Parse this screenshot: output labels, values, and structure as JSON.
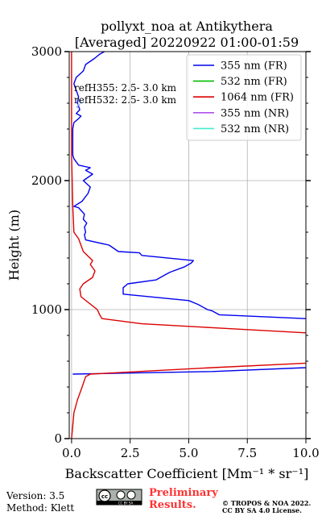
{
  "chart_data": {
    "type": "line",
    "title_line1": "pollyxt_noa at Antikythera",
    "title_line2": "[Averaged] 20220922 01:00-01:59",
    "xlabel": "Backscatter Coefficient [Mm⁻¹ * sr⁻¹]",
    "ylabel": "Height (m)",
    "xlim": [
      -0.1,
      10.0
    ],
    "ylim": [
      0,
      3000
    ],
    "xticks": [
      0.0,
      2.5,
      5.0,
      7.5,
      10.0
    ],
    "xtick_labels": [
      "0.0",
      "2.5",
      "5.0",
      "7.5",
      "10.0"
    ],
    "yticks": [
      0,
      1000,
      2000,
      3000
    ],
    "ytick_labels": [
      "0",
      "1000",
      "2000",
      "3000"
    ],
    "grid": true,
    "legend_position": "top-right",
    "annotations": [
      "refH355:  2.5- 3.0 km",
      "refH532:  2.5- 3.0 km"
    ],
    "series": [
      {
        "name": "355 nm (FR)",
        "color": "#0000ee",
        "points": [
          [
            0.05,
            500
          ],
          [
            6.0,
            520
          ],
          [
            10.0,
            550
          ],
          [
            10.5,
            560
          ],
          [
            12.0,
            900
          ],
          [
            10.0,
            930
          ],
          [
            6.3,
            960
          ],
          [
            6.0,
            990
          ],
          [
            5.8,
            1000
          ],
          [
            5.4,
            1040
          ],
          [
            5.0,
            1070
          ],
          [
            2.2,
            1120
          ],
          [
            2.2,
            1170
          ],
          [
            2.4,
            1200
          ],
          [
            3.6,
            1230
          ],
          [
            4.0,
            1270
          ],
          [
            4.2,
            1290
          ],
          [
            4.8,
            1330
          ],
          [
            5.1,
            1360
          ],
          [
            5.2,
            1380
          ],
          [
            3.0,
            1420
          ],
          [
            2.9,
            1440
          ],
          [
            2.0,
            1450
          ],
          [
            1.6,
            1500
          ],
          [
            0.6,
            1540
          ],
          [
            0.55,
            1580
          ],
          [
            0.6,
            1600
          ],
          [
            0.55,
            1640
          ],
          [
            0.65,
            1670
          ],
          [
            0.5,
            1700
          ],
          [
            0.55,
            1740
          ],
          [
            0.3,
            1790
          ],
          [
            0.1,
            1800
          ],
          [
            0.45,
            1840
          ],
          [
            0.7,
            1900
          ],
          [
            0.8,
            1950
          ],
          [
            0.5,
            2000
          ],
          [
            0.9,
            2050
          ],
          [
            0.6,
            2080
          ],
          [
            0.8,
            2100
          ],
          [
            0.3,
            2120
          ],
          [
            0.1,
            2170
          ],
          [
            0.05,
            2200
          ],
          [
            0.05,
            2400
          ],
          [
            0.1,
            2450
          ],
          [
            0.3,
            2480
          ],
          [
            0.4,
            2500
          ],
          [
            0.2,
            2520
          ],
          [
            0.35,
            2550
          ],
          [
            0.25,
            2600
          ],
          [
            0.3,
            2650
          ],
          [
            0.2,
            2700
          ],
          [
            0.1,
            2750
          ],
          [
            0.2,
            2800
          ],
          [
            0.5,
            2850
          ],
          [
            0.6,
            2900
          ],
          [
            1.0,
            2950
          ],
          [
            1.2,
            2980
          ],
          [
            1.4,
            3000
          ]
        ]
      },
      {
        "name": "532 nm (FR)",
        "color": "#00bb00",
        "points": []
      },
      {
        "name": "1064 nm (FR)",
        "color": "#dd0000",
        "points": [
          [
            0.0,
            0
          ],
          [
            0.05,
            100
          ],
          [
            0.1,
            200
          ],
          [
            0.25,
            300
          ],
          [
            0.45,
            400
          ],
          [
            0.6,
            480
          ],
          [
            0.8,
            500
          ],
          [
            6.0,
            550
          ],
          [
            9.5,
            580
          ],
          [
            10.5,
            590
          ],
          [
            11.5,
            810
          ],
          [
            10.0,
            820
          ],
          [
            6.0,
            860
          ],
          [
            3.0,
            890
          ],
          [
            1.3,
            930
          ],
          [
            1.2,
            960
          ],
          [
            1.1,
            1000
          ],
          [
            0.4,
            1100
          ],
          [
            0.35,
            1160
          ],
          [
            0.5,
            1200
          ],
          [
            0.9,
            1250
          ],
          [
            1.0,
            1300
          ],
          [
            0.8,
            1350
          ],
          [
            0.9,
            1380
          ],
          [
            0.5,
            1450
          ],
          [
            0.3,
            1550
          ],
          [
            0.1,
            1600
          ],
          [
            0.05,
            1800
          ],
          [
            0.0,
            2200
          ],
          [
            0.0,
            3000
          ]
        ]
      },
      {
        "name": "355 nm (NR)",
        "color": "#aa55ee",
        "points": []
      },
      {
        "name": "532 nm (NR)",
        "color": "#44eecc",
        "points": []
      }
    ]
  },
  "footer": {
    "version": "Version: 3.5",
    "method": "Method: Klett",
    "cc_badge": "CC BY SA",
    "preliminary_line1": "Preliminary",
    "preliminary_line2": "Results.",
    "copyright_line1": "© TROPOS & NOA 2022.",
    "copyright_line2": "CC BY SA 4.0 License."
  }
}
